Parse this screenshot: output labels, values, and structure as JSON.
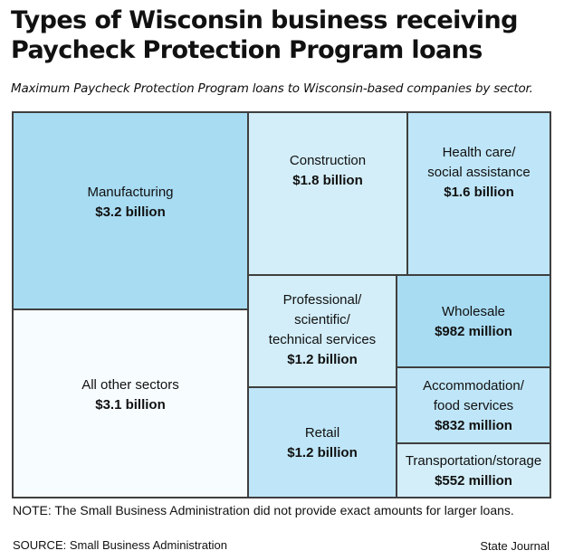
{
  "header": {
    "title": "Types of Wisconsin business receiving\nPaycheck Protection Program loans",
    "subtitle": "Maximum Paycheck Protection Program loans to Wisconsin-based companies by sector."
  },
  "footer": {
    "note": "NOTE: The Small Business Administration did not provide exact amounts for larger loans.",
    "source": "SOURCE: Small Business Administration",
    "credit": "State Journal"
  },
  "colors": {
    "dark": "#a8dcf3",
    "medium": "#bfe6f8",
    "light": "#d3eef9",
    "white": "#f7fcfe",
    "border": "#3f3f3f"
  },
  "chart_data": {
    "type": "treemap",
    "title": "Types of Wisconsin business receiving Paycheck Protection Program loans",
    "subtitle": "Maximum Paycheck Protection Program loans to Wisconsin-based companies by sector.",
    "unit": "USD",
    "items": [
      {
        "label": "Manufacturing",
        "amount": "$3.2 billion",
        "value": 3200000000,
        "shade": "dark"
      },
      {
        "label": "All other sectors",
        "amount": "$3.1 billion",
        "value": 3100000000,
        "shade": "white"
      },
      {
        "label": "Construction",
        "amount": "$1.8 billion",
        "value": 1800000000,
        "shade": "light"
      },
      {
        "label": "Health care/\nsocial assistance",
        "amount": "$1.6 billion",
        "value": 1600000000,
        "shade": "medium"
      },
      {
        "label": "Professional/\nscientific/\ntechnical services",
        "amount": "$1.2 billion",
        "value": 1200000000,
        "shade": "light"
      },
      {
        "label": "Retail",
        "amount": "$1.2 billion",
        "value": 1200000000,
        "shade": "medium"
      },
      {
        "label": "Wholesale",
        "amount": "$982 million",
        "value": 982000000,
        "shade": "dark"
      },
      {
        "label": "Accommodation/\nfood services",
        "amount": "$832 million",
        "value": 832000000,
        "shade": "medium"
      },
      {
        "label": "Transportation/storage",
        "amount": "$552 million",
        "value": 552000000,
        "shade": "light"
      }
    ]
  }
}
